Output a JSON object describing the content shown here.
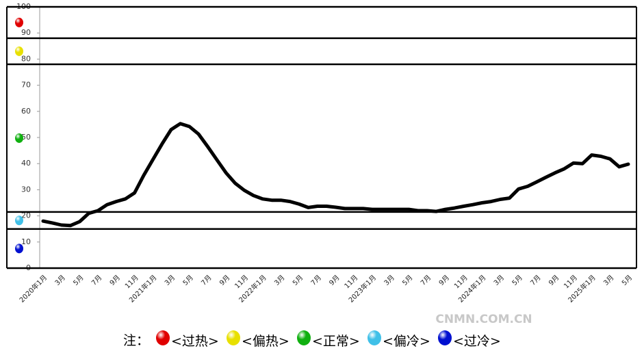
{
  "chart_data": {
    "type": "line",
    "categories": [
      "2020年1月",
      null,
      "3月",
      null,
      "5月",
      null,
      "7月",
      null,
      "9月",
      null,
      "11月",
      null,
      "2021年1月",
      null,
      "3月",
      null,
      "5月",
      null,
      "7月",
      null,
      "9月",
      null,
      "11月",
      null,
      "2022年1月",
      null,
      "3月",
      null,
      "5月",
      null,
      "7月",
      null,
      "9月",
      null,
      "11月",
      null,
      "2023年1月",
      null,
      "3月",
      null,
      "5月",
      null,
      "7月",
      null,
      "9月",
      null,
      "11月",
      null,
      "2024年1月",
      null,
      "3月",
      null,
      "5月",
      null,
      "7月",
      null,
      "9月",
      null,
      "11月",
      null,
      "2025年1月",
      null,
      "3月",
      null,
      "5月"
    ],
    "series": [
      {
        "color": "#000000",
        "values": [
          18.0,
          17.3,
          16.5,
          16.3,
          17.8,
          21.0,
          22.0,
          24.3,
          25.5,
          26.5,
          28.8,
          35.5,
          41.5,
          47.5,
          53.0,
          55.3,
          54.2,
          51.3,
          46.5,
          41.5,
          36.5,
          32.5,
          29.8,
          27.8,
          26.5,
          26.0,
          26.0,
          25.5,
          24.5,
          23.2,
          23.7,
          23.7,
          23.3,
          22.8,
          22.8,
          22.8,
          22.5,
          22.5,
          22.5,
          22.5,
          22.5,
          22.0,
          22.0,
          21.7,
          22.5,
          23.0,
          23.7,
          24.3,
          25.0,
          25.5,
          26.3,
          26.8,
          30.3,
          31.3,
          33.0,
          34.8,
          36.5,
          38.0,
          40.2,
          40.0,
          43.3,
          42.8,
          41.8,
          38.8,
          39.8
        ]
      }
    ],
    "ylim": [
      0,
      100
    ],
    "yticks": [
      0,
      10,
      20,
      30,
      40,
      50,
      60,
      70,
      80,
      90,
      100
    ],
    "zone_bounds": [
      100,
      88,
      78,
      21.5,
      15,
      0
    ],
    "legend_note": "注：",
    "zones": [
      {
        "name": "<过热>",
        "color": "#e00000"
      },
      {
        "name": "<偏热>",
        "color": "#e8e000"
      },
      {
        "name": "<正常>",
        "color": "#10b010"
      },
      {
        "name": "<偏冷>",
        "color": "#40c0e8"
      },
      {
        "name": "<过冷>",
        "color": "#0010d0"
      }
    ],
    "watermark": "CNMN.COM.CN"
  }
}
